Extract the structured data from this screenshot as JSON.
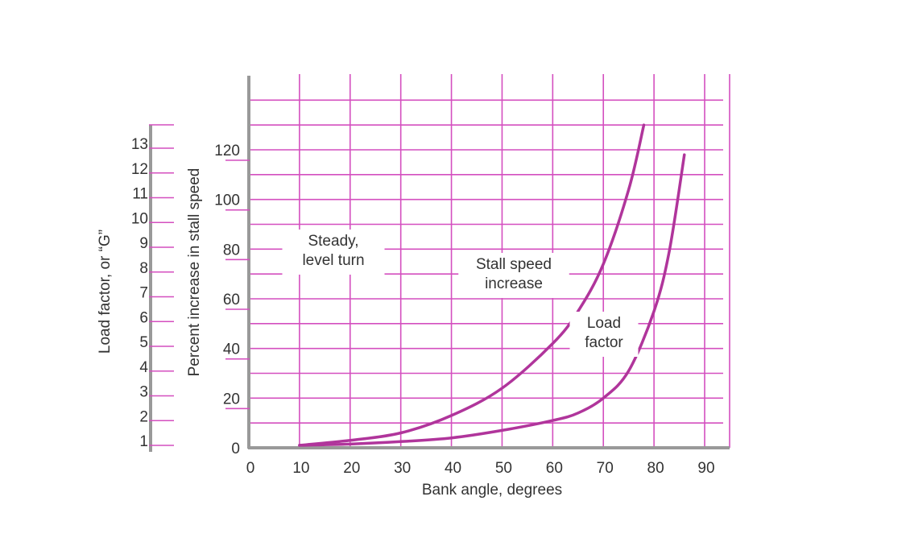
{
  "chart_data": {
    "type": "line",
    "xlabel": "Bank angle, degrees",
    "ylabel": "Percent increase in stall speed",
    "secondary_ylabel": "Load factor, or “G”",
    "xlim": [
      0,
      95
    ],
    "ylim": [
      0,
      140
    ],
    "secondary_ylim": [
      1,
      13
    ],
    "x_ticks": [
      "0",
      "10",
      "20",
      "30",
      "40",
      "50",
      "60",
      "70",
      "80",
      "90"
    ],
    "x_tick_values": [
      0,
      10,
      20,
      30,
      40,
      50,
      60,
      70,
      80,
      90
    ],
    "y_ticks": [
      "0",
      "20",
      "40",
      "60",
      "80",
      "100",
      "120"
    ],
    "y_tick_values": [
      0,
      20,
      40,
      60,
      80,
      100,
      120
    ],
    "secondary_y_ticks": [
      "1",
      "2",
      "3",
      "4",
      "5",
      "6",
      "7",
      "8",
      "9",
      "10",
      "11",
      "12",
      "13"
    ],
    "secondary_y_tick_values": [
      1,
      2,
      3,
      4,
      5,
      6,
      7,
      8,
      9,
      10,
      11,
      12,
      13
    ],
    "grid": true,
    "colors": {
      "grid": "#d44fbf",
      "curve": "#b0359b",
      "axis": "#999999",
      "text": "#333333"
    },
    "series": [
      {
        "label_lines": [
          "Stall speed",
          "increase"
        ],
        "x": [
          10,
          20,
          30,
          40,
          50,
          60,
          65,
          70,
          75,
          78
        ],
        "values": [
          1,
          3,
          6,
          13,
          24,
          42,
          55,
          74,
          104,
          130
        ]
      },
      {
        "label_lines": [
          "Load",
          "factor"
        ],
        "x": [
          10,
          20,
          30,
          40,
          50,
          60,
          65,
          70,
          75,
          80,
          83,
          86
        ],
        "values": [
          1,
          1.5,
          2.5,
          4,
          7,
          11,
          14,
          20,
          31,
          55,
          79,
          118
        ]
      }
    ],
    "annotations": [
      {
        "lines": [
          "Steady,",
          "level turn"
        ]
      }
    ]
  }
}
